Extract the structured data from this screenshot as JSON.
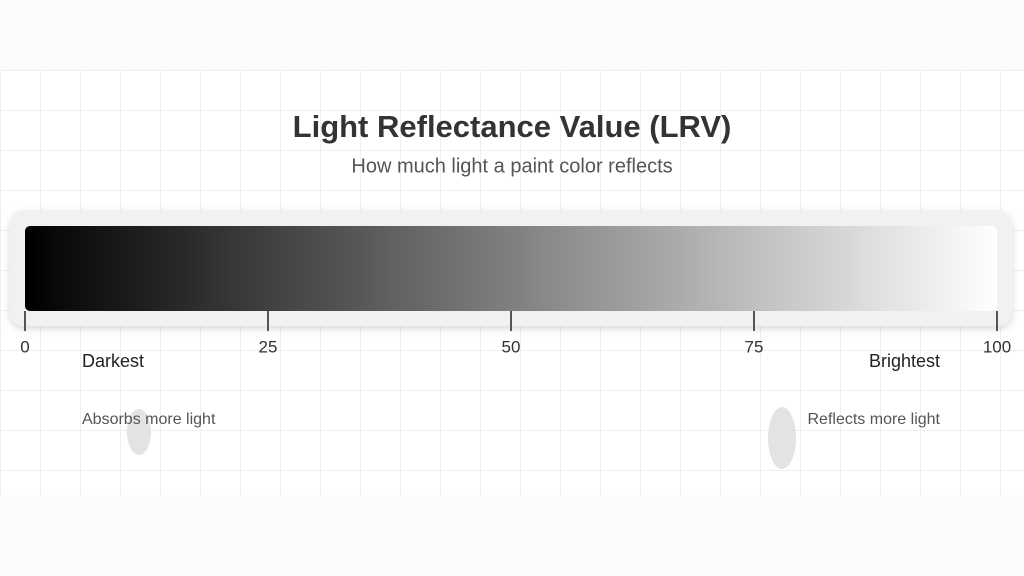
{
  "title": "Light Reflectance Value (LRV)",
  "subtitle": "How much light a paint color reflects",
  "scale": {
    "xlim": [
      0,
      100
    ],
    "xticks": [
      0,
      25,
      50,
      75,
      100
    ],
    "colors": [
      "#000000",
      "#ffffff"
    ],
    "low_label": "Darkest",
    "high_label": "Brightest",
    "low_note": "Absorbs more light",
    "high_note": "Reflects more light"
  }
}
